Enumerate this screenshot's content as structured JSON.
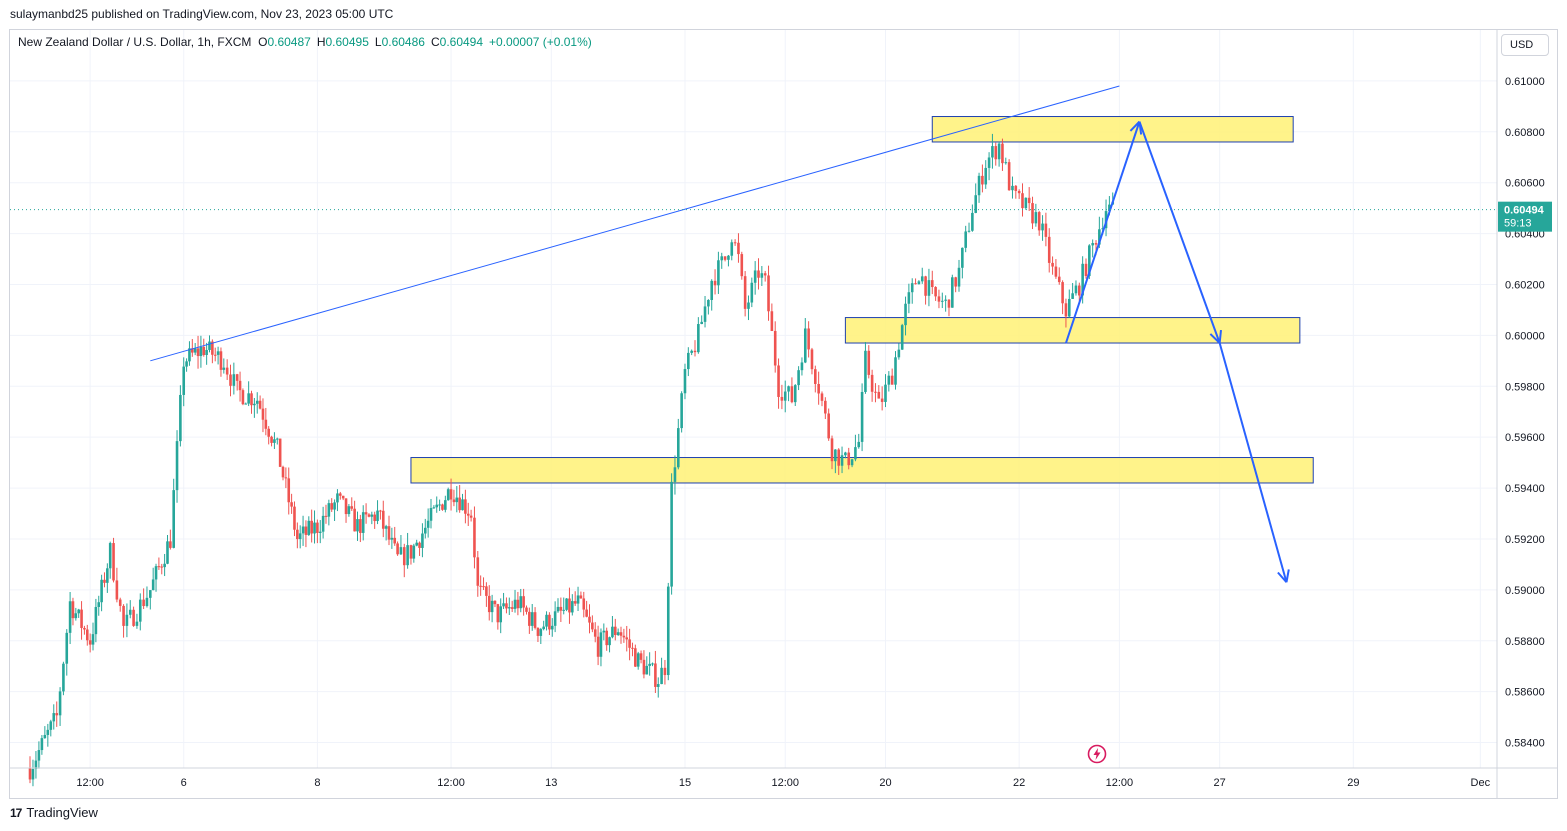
{
  "publisher": "sulaymanbd25 published on TradingView.com, Nov 23, 2023 05:00 UTC",
  "symbol": {
    "name": "New Zealand Dollar / U.S. Dollar, 1h, FXCM",
    "open_label": "O",
    "open": "0.60487",
    "high_label": "H",
    "high": "0.60495",
    "low_label": "L",
    "low": "0.60486",
    "close_label": "C",
    "close": "0.60494",
    "change": "+0.00007 (+0.01%)"
  },
  "currency": "USD",
  "footer": "TradingView",
  "icons": {
    "footer_logo": "tradingview-logo-icon",
    "replay": "lightning-icon"
  },
  "colors": {
    "up": "#26a69a",
    "down": "#ef5350",
    "zone_fill": "#fff176",
    "zone_border": "#1e40af",
    "trend": "#2962ff",
    "last_price_bg": "#26a69a"
  },
  "chart_data": {
    "type": "candlestick",
    "ylim": [
      0.583,
      0.612
    ],
    "y_ticks": [
      "0.61000",
      "0.60800",
      "0.60600",
      "0.60400",
      "0.60200",
      "0.60000",
      "0.59800",
      "0.59600",
      "0.59400",
      "0.59200",
      "0.59000",
      "0.58800",
      "0.58600",
      "0.58400"
    ],
    "y_tick_values": [
      0.61,
      0.608,
      0.606,
      0.604,
      0.602,
      0.6,
      0.598,
      0.596,
      0.594,
      0.592,
      0.59,
      0.588,
      0.586,
      0.584
    ],
    "x_range": [
      0,
      218
    ],
    "x_ticks": [
      {
        "label": "12:00",
        "x": 9
      },
      {
        "label": "6",
        "x": 23
      },
      {
        "label": "8",
        "x": 43
      },
      {
        "label": "12:00",
        "x": 63
      },
      {
        "label": "13",
        "x": 78
      },
      {
        "label": "15",
        "x": 98
      },
      {
        "label": "12:00",
        "x": 113
      },
      {
        "label": "20",
        "x": 128
      },
      {
        "label": "22",
        "x": 148
      },
      {
        "label": "12:00",
        "x": 163
      },
      {
        "label": "27",
        "x": 178
      },
      {
        "label": "29",
        "x": 198
      },
      {
        "label": "Dec",
        "x": 217
      }
    ],
    "last_price": "0.60494",
    "countdown": "59:13",
    "last_price_value": 0.60494,
    "anchors": [
      [
        0,
        0.583
      ],
      [
        4,
        0.585
      ],
      [
        6,
        0.5895
      ],
      [
        9,
        0.588
      ],
      [
        12,
        0.5915
      ],
      [
        14,
        0.5885
      ],
      [
        16,
        0.5892
      ],
      [
        18,
        0.59
      ],
      [
        21,
        0.592
      ],
      [
        23,
        0.599
      ],
      [
        26,
        0.5995
      ],
      [
        29,
        0.599
      ],
      [
        31,
        0.5978
      ],
      [
        34,
        0.5975
      ],
      [
        37,
        0.5955
      ],
      [
        40,
        0.592
      ],
      [
        43,
        0.5925
      ],
      [
        46,
        0.5935
      ],
      [
        49,
        0.5925
      ],
      [
        52,
        0.593
      ],
      [
        55,
        0.5912
      ],
      [
        57,
        0.5915
      ],
      [
        60,
        0.5928
      ],
      [
        63,
        0.594
      ],
      [
        66,
        0.593
      ],
      [
        67,
        0.59
      ],
      [
        70,
        0.589
      ],
      [
        73,
        0.5895
      ],
      [
        76,
        0.5885
      ],
      [
        79,
        0.589
      ],
      [
        82,
        0.5895
      ],
      [
        85,
        0.5878
      ],
      [
        88,
        0.5885
      ],
      [
        91,
        0.5872
      ],
      [
        94,
        0.5865
      ],
      [
        95,
        0.587
      ],
      [
        96,
        0.594
      ],
      [
        98,
        0.5985
      ],
      [
        100,
        0.6
      ],
      [
        102,
        0.6022
      ],
      [
        104,
        0.603
      ],
      [
        105,
        0.604
      ],
      [
        106,
        0.603
      ],
      [
        107,
        0.601
      ],
      [
        109,
        0.6025
      ],
      [
        110,
        0.602
      ],
      [
        112,
        0.598
      ],
      [
        114,
        0.5975
      ],
      [
        116,
        0.6
      ],
      [
        118,
        0.598
      ],
      [
        120,
        0.5955
      ],
      [
        122,
        0.595
      ],
      [
        124,
        0.5958
      ],
      [
        125,
        0.599
      ],
      [
        127,
        0.5972
      ],
      [
        129,
        0.5985
      ],
      [
        131,
        0.601
      ],
      [
        133,
        0.6025
      ],
      [
        135,
        0.6015
      ],
      [
        137,
        0.6012
      ],
      [
        139,
        0.6025
      ],
      [
        141,
        0.605
      ],
      [
        143,
        0.6068
      ],
      [
        145,
        0.6075
      ],
      [
        147,
        0.6055
      ],
      [
        149,
        0.605
      ],
      [
        151,
        0.6045
      ],
      [
        153,
        0.6025
      ],
      [
        155,
        0.601
      ],
      [
        157,
        0.602
      ],
      [
        159,
        0.6035
      ],
      [
        161,
        0.605
      ],
      [
        162,
        0.6049
      ]
    ],
    "zones": [
      {
        "x0": 135,
        "x1": 189,
        "y0": 0.6076,
        "y1": 0.6086
      },
      {
        "x0": 122,
        "x1": 190,
        "y0": 0.5997,
        "y1": 0.6007
      },
      {
        "x0": 57,
        "x1": 192,
        "y0": 0.5942,
        "y1": 0.5952
      }
    ],
    "trendline": [
      [
        18,
        0.599
      ],
      [
        163,
        0.6098
      ]
    ],
    "projection": [
      [
        155,
        0.5997
      ],
      [
        166,
        0.6084
      ],
      [
        178,
        0.5997
      ],
      [
        188,
        0.5903
      ]
    ]
  }
}
